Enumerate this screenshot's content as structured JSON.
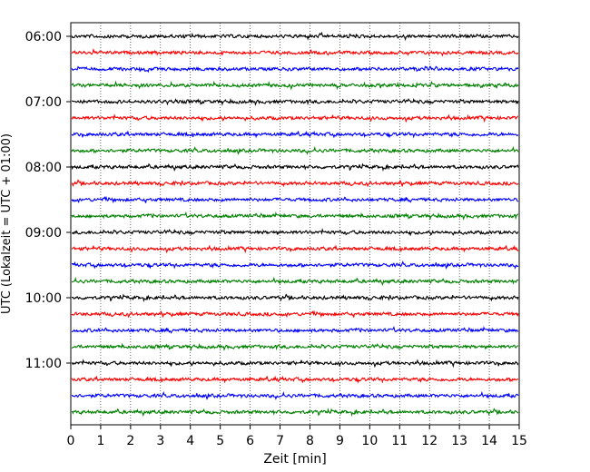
{
  "chart_data": {
    "type": "line",
    "title": "",
    "xlabel": "Zeit  [min]",
    "ylabel": "UTC (Lokalzeit = UTC + 01:00)",
    "xlim": [
      0,
      15
    ],
    "x_ticks": [
      0,
      1,
      2,
      3,
      4,
      5,
      6,
      7,
      8,
      9,
      10,
      11,
      12,
      13,
      14,
      15
    ],
    "x_tick_labels": [
      "0",
      "1",
      "2",
      "3",
      "4",
      "5",
      "6",
      "7",
      "8",
      "9",
      "10",
      "11",
      "12",
      "13",
      "14",
      "15"
    ],
    "y_tick_labels": [
      "06:00",
      "07:00",
      "08:00",
      "09:00",
      "10:00",
      "11:00"
    ],
    "grid": {
      "x": true,
      "style": "dotted"
    },
    "trace_interval_min": 15,
    "colors": [
      "#000000",
      "#ff0000",
      "#0000ff",
      "#008000"
    ],
    "traces": [
      {
        "start": "06:00",
        "color": "#000000"
      },
      {
        "start": "06:15",
        "color": "#ff0000"
      },
      {
        "start": "06:30",
        "color": "#0000ff"
      },
      {
        "start": "06:45",
        "color": "#008000"
      },
      {
        "start": "07:00",
        "color": "#000000"
      },
      {
        "start": "07:15",
        "color": "#ff0000"
      },
      {
        "start": "07:30",
        "color": "#0000ff"
      },
      {
        "start": "07:45",
        "color": "#008000"
      },
      {
        "start": "08:00",
        "color": "#000000"
      },
      {
        "start": "08:15",
        "color": "#ff0000"
      },
      {
        "start": "08:30",
        "color": "#0000ff"
      },
      {
        "start": "08:45",
        "color": "#008000"
      },
      {
        "start": "09:00",
        "color": "#000000"
      },
      {
        "start": "09:15",
        "color": "#ff0000"
      },
      {
        "start": "09:30",
        "color": "#0000ff"
      },
      {
        "start": "09:45",
        "color": "#008000"
      },
      {
        "start": "10:00",
        "color": "#000000"
      },
      {
        "start": "10:15",
        "color": "#ff0000"
      },
      {
        "start": "10:30",
        "color": "#0000ff"
      },
      {
        "start": "10:45",
        "color": "#008000"
      },
      {
        "start": "11:00",
        "color": "#000000"
      },
      {
        "start": "11:15",
        "color": "#ff0000"
      },
      {
        "start": "11:30",
        "color": "#0000ff"
      },
      {
        "start": "11:45",
        "color": "#008000"
      }
    ]
  }
}
